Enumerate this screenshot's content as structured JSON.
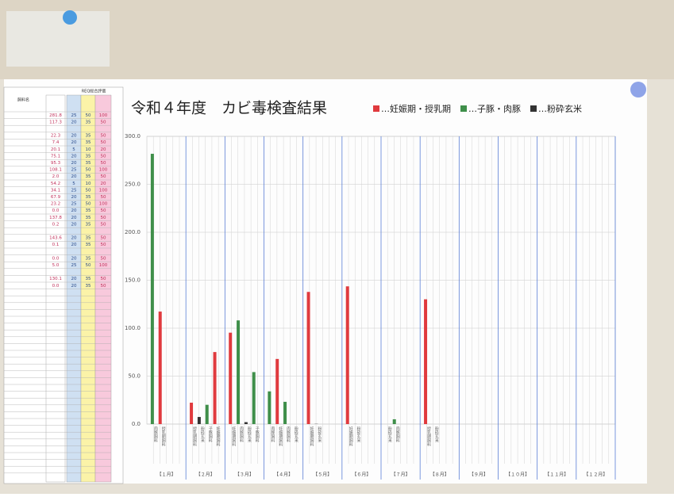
{
  "chart_data": {
    "type": "bar",
    "title": "令和４年度　カビ毒検査結果",
    "series": [
      {
        "name": "…妊娠期・授乳期",
        "color": "#e03a3e"
      },
      {
        "name": "…子豚・肉豚",
        "color": "#3f8f4a"
      },
      {
        "name": "…粉砕玄米",
        "color": "#333333"
      }
    ],
    "groups": [
      {
        "label": "【１月】",
        "bars": [
          {
            "label": "肉豚飼料",
            "color": "#3f8f4a",
            "value": 281.8
          },
          {
            "label": "授乳期飼料",
            "color": "#e03a3e",
            "value": 117.3
          }
        ]
      },
      {
        "label": "【２月】",
        "bars": [
          {
            "label": "授乳期飼料",
            "color": "#e03a3e",
            "value": 22.3
          },
          {
            "label": "粉砕玄米",
            "color": "#333333",
            "value": 7.4
          },
          {
            "label": "子豚飼料",
            "color": "#3f8f4a",
            "value": 20.1
          },
          {
            "label": "妊娠期飼料",
            "color": "#e03a3e",
            "value": 75.1
          }
        ]
      },
      {
        "label": "【３月】",
        "bars": [
          {
            "label": "妊娠期飼料",
            "color": "#e03a3e",
            "value": 95.3
          },
          {
            "label": "肉豚飼料",
            "color": "#3f8f4a",
            "value": 108.1
          },
          {
            "label": "粉砕玄米",
            "color": "#333333",
            "value": 2.0
          },
          {
            "label": "子豚飼料",
            "color": "#3f8f4a",
            "value": 54.2
          }
        ]
      },
      {
        "label": "【４月】",
        "bars": [
          {
            "label": "肉豚飼料",
            "color": "#3f8f4a",
            "value": 34.1
          },
          {
            "label": "妊娠期飼料",
            "color": "#e03a3e",
            "value": 67.9
          },
          {
            "label": "肉豚飼料",
            "color": "#3f8f4a",
            "value": 23.2
          },
          {
            "label": "粉砕玄米",
            "color": "#333333",
            "value": 0.0
          }
        ]
      },
      {
        "label": "【５月】",
        "bars": [
          {
            "label": "妊娠期飼料",
            "color": "#e03a3e",
            "value": 137.8
          },
          {
            "label": "粉砕玄米",
            "color": "#333333",
            "value": 0.2
          }
        ]
      },
      {
        "label": "【６月】",
        "bars": [
          {
            "label": "妊娠期飼料",
            "color": "#e03a3e",
            "value": 143.6
          },
          {
            "label": "粉砕玄米",
            "color": "#333333",
            "value": 0.1
          }
        ]
      },
      {
        "label": "【７月】",
        "bars": [
          {
            "label": "粉砕玄米",
            "color": "#333333",
            "value": 0.0
          },
          {
            "label": "肉豚飼料",
            "color": "#3f8f4a",
            "value": 5.0
          }
        ]
      },
      {
        "label": "【８月】",
        "bars": [
          {
            "label": "授乳期飼料",
            "color": "#e03a3e",
            "value": 130.1
          },
          {
            "label": "粉砕玄米",
            "color": "#333333",
            "value": 0.0
          }
        ]
      },
      {
        "label": "【９月】",
        "bars": []
      },
      {
        "label": "【１０月】",
        "bars": []
      },
      {
        "label": "【１１月】",
        "bars": []
      },
      {
        "label": "【１２月】",
        "bars": []
      }
    ],
    "ylim": [
      0,
      300
    ],
    "yticks": [
      {
        "value": 0,
        "label": "0.0"
      },
      {
        "value": 50,
        "label": "50.0"
      },
      {
        "value": 100,
        "label": "100.0"
      },
      {
        "value": 150,
        "label": "150.0"
      },
      {
        "value": 200,
        "label": "200.0"
      },
      {
        "value": 250,
        "label": "250.0"
      },
      {
        "value": 300,
        "label": "300.0"
      }
    ],
    "grid": true
  },
  "table": {
    "headers": [
      "飼料名",
      "REQ総合評価"
    ],
    "rows": [
      [
        "281.8",
        "25",
        "50",
        "100"
      ],
      [
        "117.3",
        "20",
        "35",
        "50"
      ],
      [],
      [
        "22.3",
        "20",
        "35",
        "50"
      ],
      [
        "7.4",
        "20",
        "35",
        "50"
      ],
      [
        "20.1",
        "5",
        "10",
        "20"
      ],
      [
        "75.1",
        "20",
        "35",
        "50"
      ],
      [
        "95.3",
        "20",
        "35",
        "50"
      ],
      [
        "108.1",
        "25",
        "50",
        "100"
      ],
      [
        "2.0",
        "20",
        "35",
        "50"
      ],
      [
        "54.2",
        "5",
        "10",
        "20"
      ],
      [
        "34.1",
        "25",
        "50",
        "100"
      ],
      [
        "67.9",
        "20",
        "35",
        "50"
      ],
      [
        "23.2",
        "25",
        "50",
        "100"
      ],
      [
        "0.0",
        "20",
        "35",
        "50"
      ],
      [
        "137.8",
        "20",
        "35",
        "50"
      ],
      [
        "0.2",
        "20",
        "35",
        "50"
      ],
      [],
      [
        "143.6",
        "20",
        "35",
        "50"
      ],
      [
        "0.1",
        "20",
        "35",
        "50"
      ],
      [],
      [
        "0.0",
        "20",
        "35",
        "50"
      ],
      [
        "5.0",
        "25",
        "50",
        "100"
      ],
      [],
      [
        "130.1",
        "20",
        "35",
        "50"
      ],
      [
        "0.0",
        "20",
        "35",
        "50"
      ]
    ]
  }
}
